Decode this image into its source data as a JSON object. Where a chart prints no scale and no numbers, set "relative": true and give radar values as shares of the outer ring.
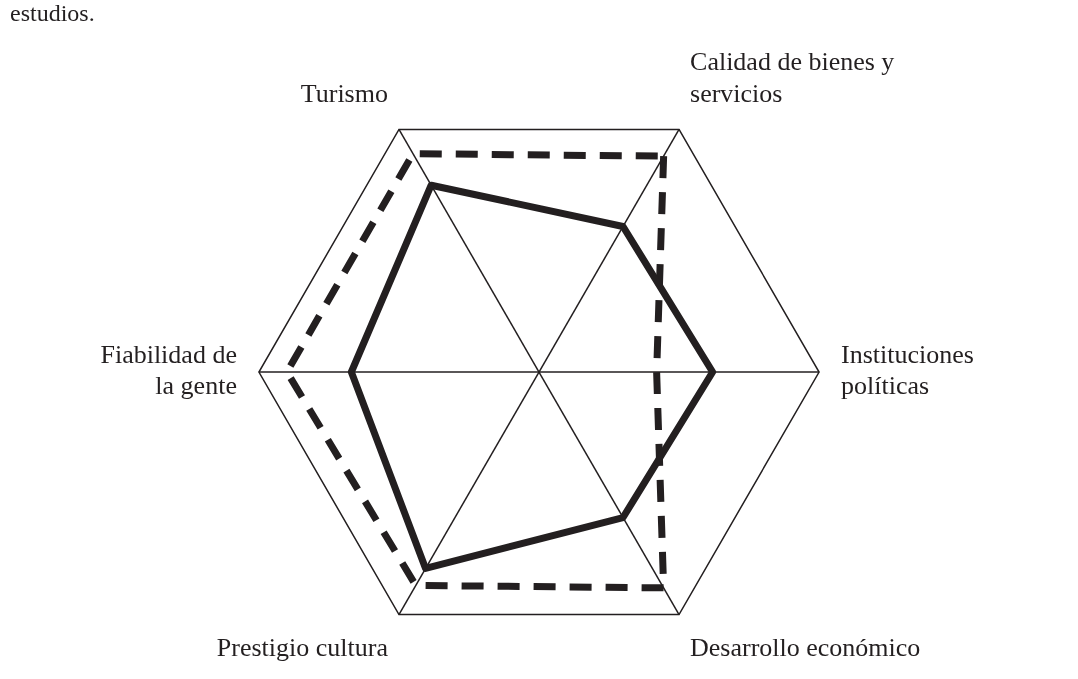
{
  "chart_data": {
    "type": "radar",
    "relative": true,
    "legend": false,
    "grid": true,
    "marker": "none",
    "categories": [
      "Calidad de bienes y\nservicios",
      "Instituciones\npolíticas",
      "Desarrollo económico",
      "Prestigio cultura",
      "Fiabilidad de\nla gente",
      "Turismo"
    ],
    "series": [
      {
        "color": "#231f20",
        "line_style": "solid",
        "values": [
          0.6,
          0.62,
          0.6,
          0.81,
          0.67,
          0.77
        ]
      },
      {
        "color": "#231f20",
        "line_style": "dashed",
        "values": [
          0.89,
          0.42,
          0.89,
          0.88,
          0.9,
          0.9
        ]
      }
    ],
    "annotations": [
      "estudios."
    ]
  }
}
